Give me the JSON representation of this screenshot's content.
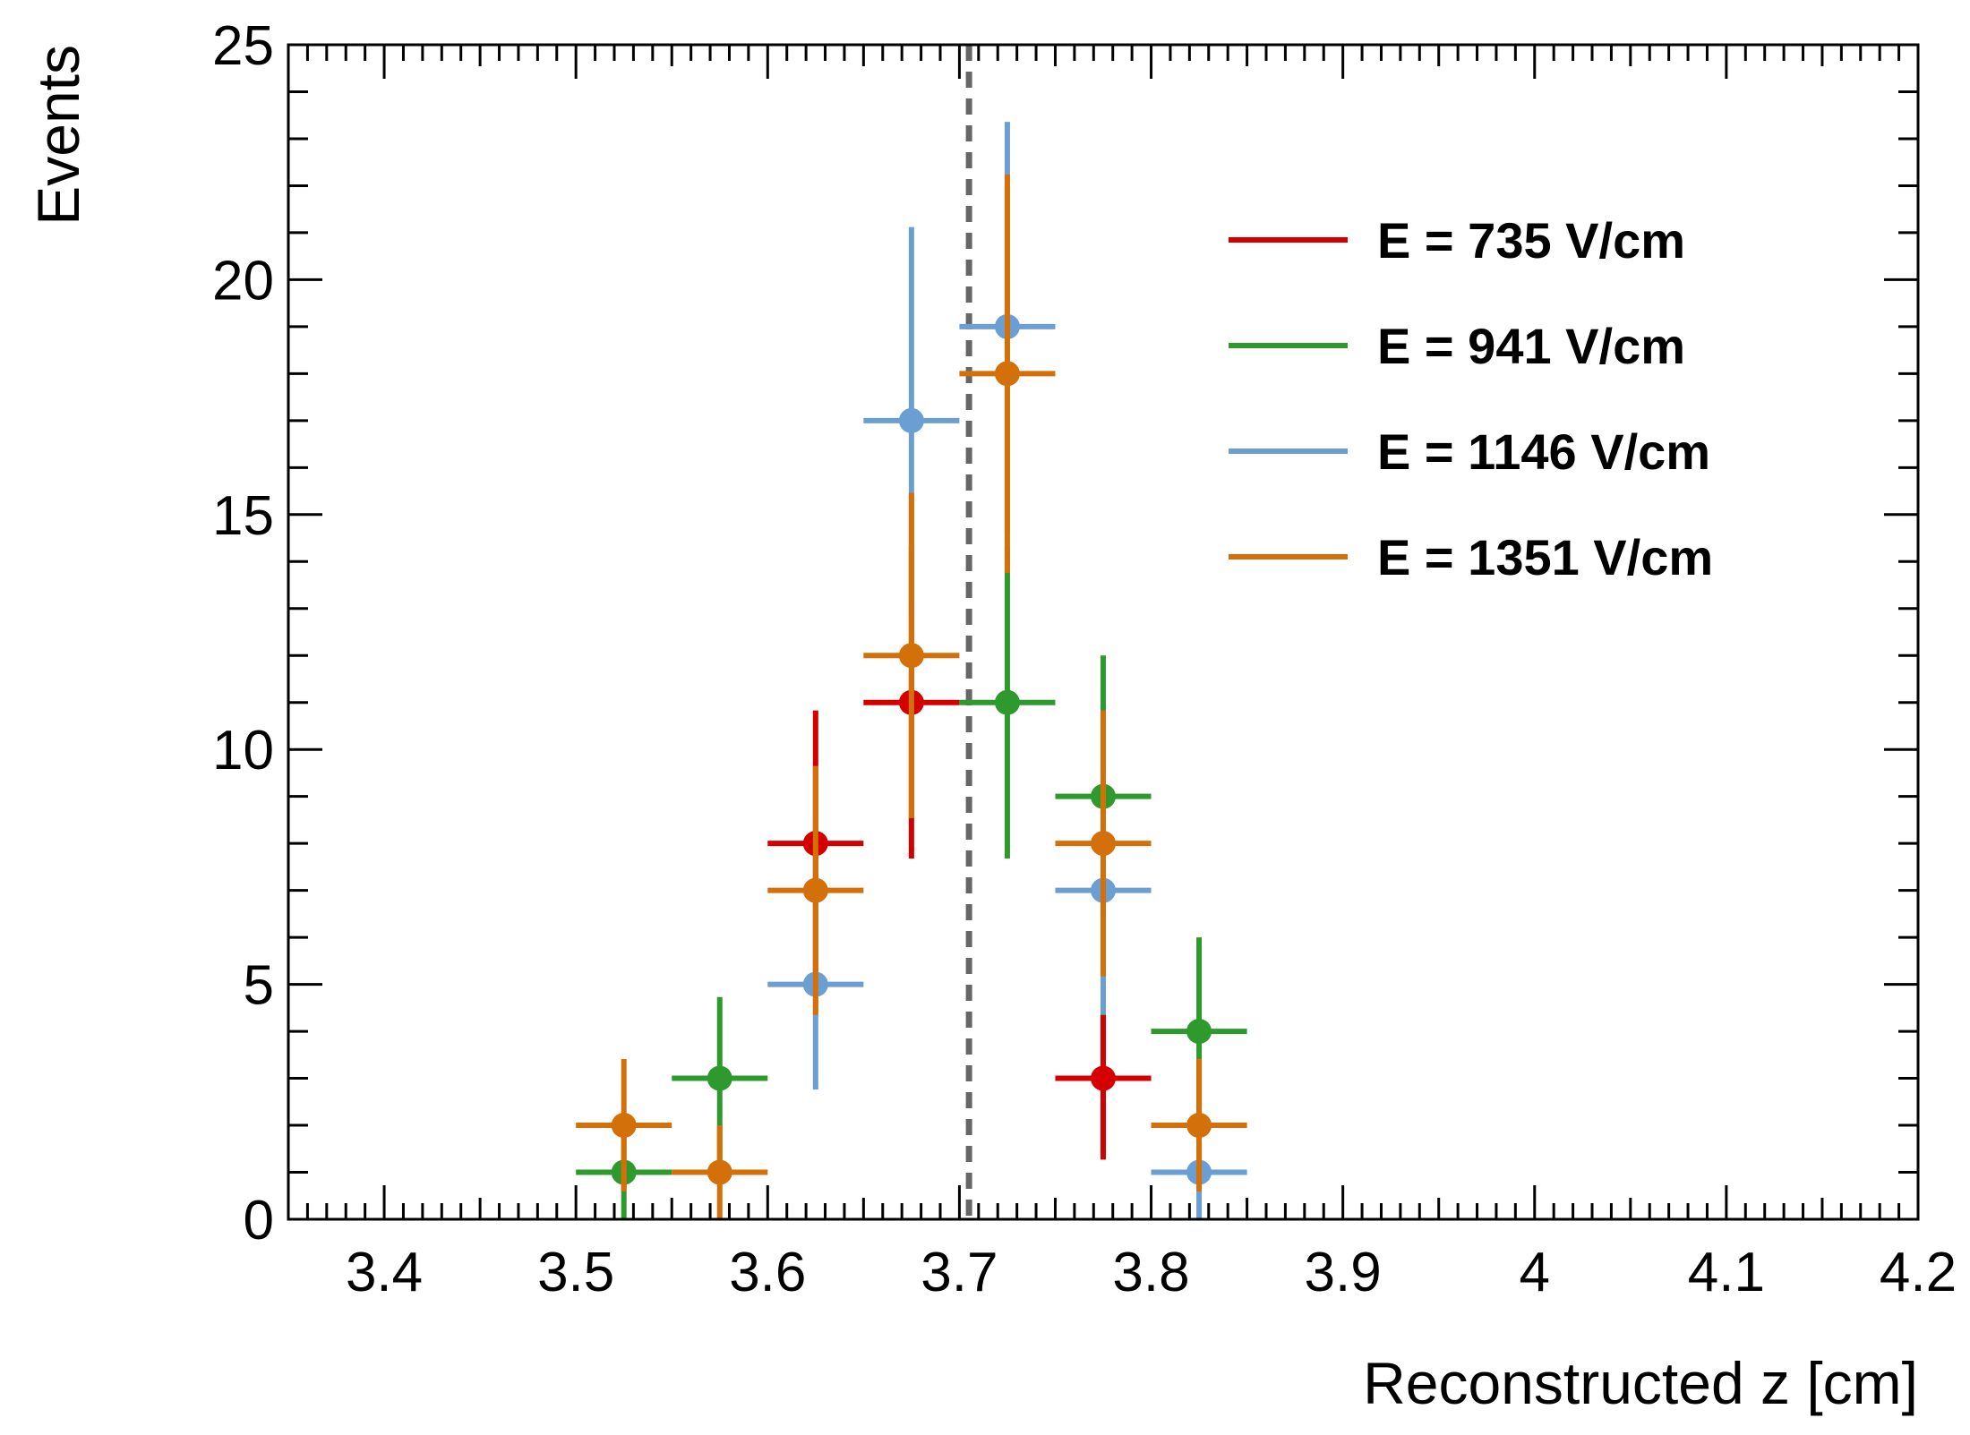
{
  "chart_data": {
    "type": "scatter",
    "xlabel": "Reconstructed z [cm]",
    "ylabel": "Events",
    "xlim": [
      3.35,
      4.2
    ],
    "ylim": [
      0,
      25
    ],
    "x_ticks": [
      "3.4",
      "3.5",
      "3.6",
      "3.7",
      "3.8",
      "3.9",
      "4",
      "4.1",
      "4.2"
    ],
    "y_ticks": [
      "0",
      "5",
      "10",
      "15",
      "20",
      "25"
    ],
    "x_tick_values": [
      3.4,
      3.5,
      3.6,
      3.7,
      3.8,
      3.9,
      4.0,
      4.1,
      4.2
    ],
    "y_tick_values": [
      0,
      5,
      10,
      15,
      20,
      25
    ],
    "bin_width": 0.05,
    "reference_line_x": 3.705,
    "legend_position": "top-right",
    "series": [
      {
        "name": "E = 735 V/cm",
        "color": "#d40000",
        "points": [
          {
            "x": 3.625,
            "y": 8,
            "err": 2.83
          },
          {
            "x": 3.675,
            "y": 11,
            "err": 3.32
          },
          {
            "x": 3.775,
            "y": 3,
            "err": 1.73
          }
        ]
      },
      {
        "name": "E = 941 V/cm",
        "color": "#2e9a2e",
        "points": [
          {
            "x": 3.525,
            "y": 1,
            "err": 1.0
          },
          {
            "x": 3.575,
            "y": 3,
            "err": 1.73
          },
          {
            "x": 3.725,
            "y": 11,
            "err": 3.32
          },
          {
            "x": 3.775,
            "y": 9,
            "err": 3.0
          },
          {
            "x": 3.825,
            "y": 4,
            "err": 2.0
          }
        ]
      },
      {
        "name": "E = 1146 V/cm",
        "color": "#6b9fd4",
        "points": [
          {
            "x": 3.625,
            "y": 5,
            "err": 2.24
          },
          {
            "x": 3.675,
            "y": 17,
            "err": 4.12
          },
          {
            "x": 3.725,
            "y": 19,
            "err": 4.36
          },
          {
            "x": 3.775,
            "y": 7,
            "err": 2.65
          },
          {
            "x": 3.825,
            "y": 1,
            "err": 1.0
          }
        ]
      },
      {
        "name": "E = 1351 V/cm",
        "color": "#d4700a",
        "points": [
          {
            "x": 3.525,
            "y": 2,
            "err": 1.41
          },
          {
            "x": 3.575,
            "y": 1,
            "err": 1.0
          },
          {
            "x": 3.625,
            "y": 7,
            "err": 2.65
          },
          {
            "x": 3.675,
            "y": 12,
            "err": 3.46
          },
          {
            "x": 3.725,
            "y": 18,
            "err": 4.24
          },
          {
            "x": 3.775,
            "y": 8,
            "err": 2.83
          },
          {
            "x": 3.825,
            "y": 2,
            "err": 1.41
          }
        ]
      }
    ]
  }
}
